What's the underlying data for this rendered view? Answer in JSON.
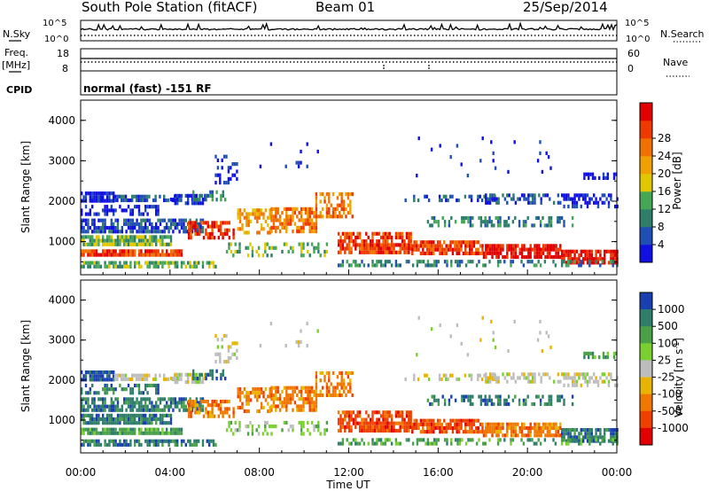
{
  "header": {
    "station": "South Pole Station (fitACF)",
    "beam": "Beam 01",
    "date": "25/Sep/2014"
  },
  "top_panels": {
    "nsky_label": "N.Sky",
    "nsky_ticks": [
      "10^5",
      "10^0"
    ],
    "nsearch_label": "N.Search",
    "nsearch_ticks": [
      "10^5",
      "10^0"
    ],
    "freq_label_1": "Freq.",
    "freq_label_2": "[MHz]",
    "freq_ticks": [
      "18",
      "8"
    ],
    "nave_label": "Nave",
    "nave_ticks": [
      "60",
      "0"
    ],
    "cpid_label": "CPID",
    "cpid_text": "normal (fast) -151 RF"
  },
  "chart_data": [
    {
      "type": "heatmap",
      "panel": "power",
      "ylabel": "Slant Range [km]",
      "yticks": [
        "1000",
        "2000",
        "3000",
        "4000"
      ],
      "ylim": [
        180,
        4500
      ],
      "xlim": [
        0,
        24
      ],
      "colorbar_title": "Power [dB]",
      "colorbar_ticks": [
        "4",
        "8",
        "12",
        "16",
        "20",
        "24",
        "28"
      ],
      "colorscale": [
        "#1010e0",
        "#1f4fb4",
        "#2f7e6a",
        "#45a656",
        "#e0c800",
        "#f0a000",
        "#f07000",
        "#ee3a00",
        "#e00000"
      ]
    },
    {
      "type": "heatmap",
      "panel": "velocity",
      "ylabel": "Slant Range [km]",
      "yticks": [
        "1000",
        "2000",
        "3000",
        "4000"
      ],
      "ylim": [
        180,
        4500
      ],
      "xlim": [
        0,
        24
      ],
      "xlabel": "Time UT",
      "xticks": [
        "00:00",
        "04:00",
        "08:00",
        "12:00",
        "16:00",
        "20:00",
        "00:00"
      ],
      "colorbar_title": "Velocity [m s^-1]",
      "colorbar_ticks": [
        "1000",
        "500",
        "100",
        "25",
        "-25",
        "-100",
        "-500",
        "-1000"
      ],
      "colorscale": [
        "#1a3fb0",
        "#2f7e6a",
        "#49a048",
        "#7ad030",
        "#bdbdbd",
        "#e8b400",
        "#f07800",
        "#ee4000",
        "#e00000"
      ]
    }
  ]
}
